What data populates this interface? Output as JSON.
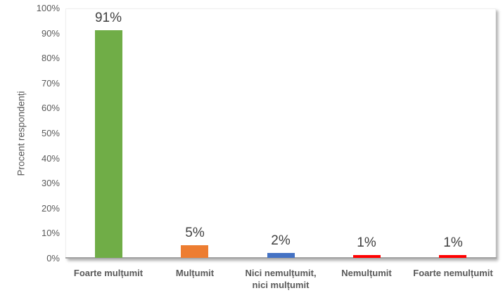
{
  "chart_data": {
    "type": "bar",
    "title": "",
    "xlabel": "",
    "ylabel": "Procent respondenți",
    "categories": [
      "Foarte mulțumit",
      "Mulțumit",
      "Nici nemulțumit,\nnici mulțumit",
      "Nemulțumit",
      "Foarte nemulțumit"
    ],
    "values": [
      91,
      5,
      2,
      1,
      1
    ],
    "data_labels": [
      "91%",
      "5%",
      "2%",
      "1%",
      "1%"
    ],
    "bar_colors": [
      "#70AD47",
      "#ED7D31",
      "#4472C4",
      "#FF0000",
      "#FF0000"
    ],
    "ylim": [
      0,
      100
    ],
    "ytick_labels": [
      "0%",
      "10%",
      "20%",
      "30%",
      "40%",
      "50%",
      "60%",
      "70%",
      "80%",
      "90%",
      "100%"
    ],
    "grid": false,
    "legend": "none",
    "colors": {
      "axis_line": "#a3a3a3",
      "tick_text": "#595959",
      "category_text": "#595959",
      "data_label_text": "#404040",
      "background": "#ffffff"
    }
  }
}
